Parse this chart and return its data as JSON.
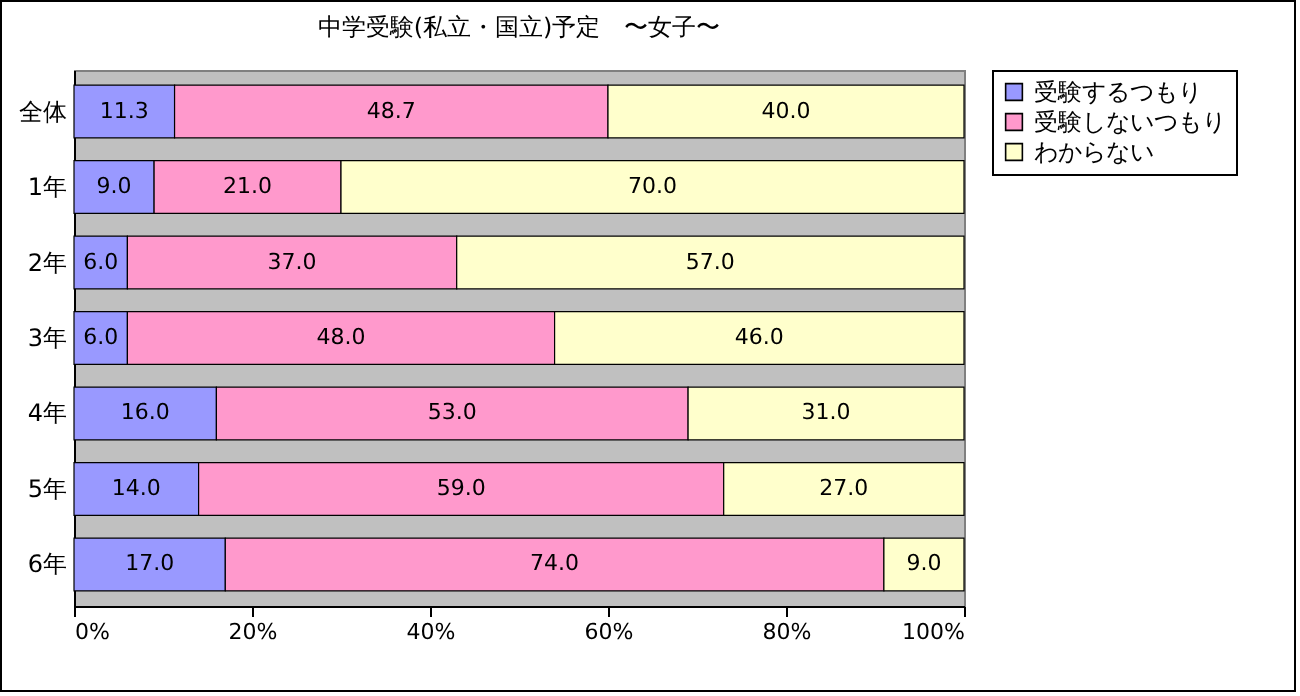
{
  "chart_data": {
    "type": "bar",
    "orientation": "horizontal",
    "stacked": true,
    "title": "中学受験(私立・国立)予定　〜女子〜",
    "categories": [
      "全体",
      "1年",
      "2年",
      "3年",
      "4年",
      "5年",
      "6年"
    ],
    "series": [
      {
        "name": "受験するつもり",
        "color": "#9999ff",
        "values": [
          11.3,
          9.0,
          6.0,
          6.0,
          16.0,
          14.0,
          17.0
        ],
        "value_labels": [
          "11.3",
          "9.0",
          "6.0",
          "6.0",
          "16.0",
          "14.0",
          "17.0"
        ]
      },
      {
        "name": "受験しないつもり",
        "color": "#ff99cc",
        "values": [
          48.7,
          21.0,
          37.0,
          48.0,
          53.0,
          59.0,
          74.0
        ],
        "value_labels": [
          "48.7",
          "21.0",
          "37.0",
          "48.0",
          "53.0",
          "59.0",
          "74.0"
        ]
      },
      {
        "name": "わからない",
        "color": "#ffffcc",
        "values": [
          40.0,
          70.0,
          57.0,
          46.0,
          31.0,
          27.0,
          9.0
        ],
        "value_labels": [
          "40.0",
          "70.0",
          "57.0",
          "46.0",
          "31.0",
          "27.0",
          "9.0"
        ]
      }
    ],
    "xlim": [
      0,
      100
    ],
    "xticks": [
      {
        "value": 0,
        "label": "0%"
      },
      {
        "value": 20,
        "label": "20%"
      },
      {
        "value": 40,
        "label": "40%"
      },
      {
        "value": 60,
        "label": "60%"
      },
      {
        "value": 80,
        "label": "80%"
      },
      {
        "value": 100,
        "label": "100%"
      }
    ],
    "legend": "right",
    "grid": false
  }
}
